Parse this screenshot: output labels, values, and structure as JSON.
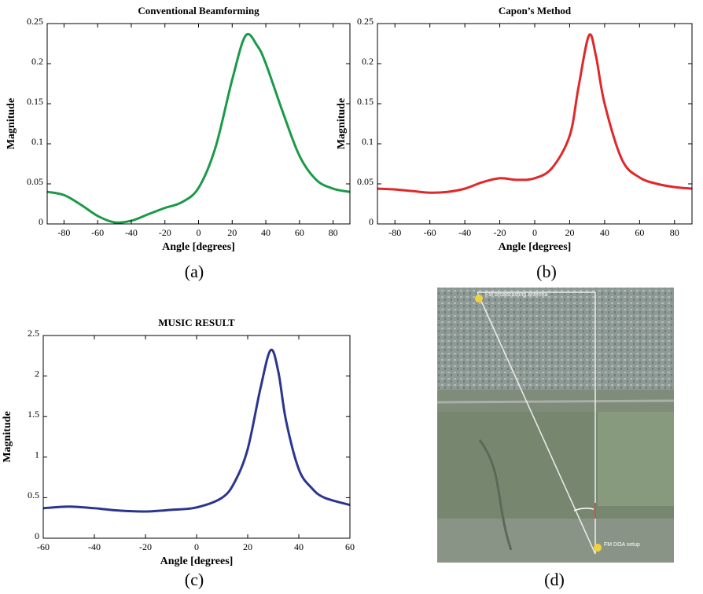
{
  "chart_data": [
    {
      "type": "line",
      "title": "Conventional Beamforming",
      "xlabel": "Angle [degrees]",
      "ylabel": "Magnitude",
      "x": [
        -90,
        -80,
        -70,
        -60,
        -50,
        -40,
        -30,
        -20,
        -10,
        0,
        10,
        20,
        28,
        35,
        40,
        50,
        60,
        70,
        80,
        90
      ],
      "series": [
        {
          "name": "Conventional Beamforming",
          "color": "#1a9a48",
          "values": [
            0.04,
            0.036,
            0.024,
            0.01,
            0.002,
            0.004,
            0.012,
            0.02,
            0.027,
            0.045,
            0.095,
            0.18,
            0.235,
            0.222,
            0.2,
            0.14,
            0.085,
            0.055,
            0.044,
            0.04
          ]
        }
      ],
      "xlim": [
        -90,
        90
      ],
      "xticks": [
        -80,
        -60,
        -40,
        -20,
        0,
        20,
        40,
        60,
        80
      ],
      "ylim": [
        0,
        0.25
      ],
      "yticks": [
        0,
        0.05,
        0.1,
        0.15,
        0.2,
        0.25
      ]
    },
    {
      "type": "line",
      "title": "Capon’s Method",
      "xlabel": "Angle [degrees]",
      "ylabel": "Magnitude",
      "x": [
        -90,
        -80,
        -70,
        -60,
        -50,
        -40,
        -30,
        -20,
        -10,
        0,
        10,
        20,
        25,
        31,
        35,
        40,
        50,
        60,
        70,
        80,
        90
      ],
      "series": [
        {
          "name": "Capon’s Method",
          "color": "#e0282a",
          "values": [
            0.044,
            0.043,
            0.041,
            0.039,
            0.04,
            0.044,
            0.052,
            0.057,
            0.055,
            0.057,
            0.07,
            0.11,
            0.17,
            0.235,
            0.21,
            0.15,
            0.08,
            0.058,
            0.05,
            0.046,
            0.044
          ]
        }
      ],
      "xlim": [
        -90,
        90
      ],
      "xticks": [
        -80,
        -60,
        -40,
        -20,
        0,
        20,
        40,
        60,
        80
      ],
      "ylim": [
        0,
        0.25
      ],
      "yticks": [
        0,
        0.05,
        0.1,
        0.15,
        0.2,
        0.25
      ]
    },
    {
      "type": "line",
      "title": "MUSIC RESULT",
      "xlabel": "Angle [degrees]",
      "ylabel": "Magnitude",
      "x": [
        -60,
        -50,
        -40,
        -30,
        -20,
        -10,
        0,
        10,
        15,
        20,
        25,
        29,
        32,
        35,
        40,
        45,
        50,
        60
      ],
      "series": [
        {
          "name": "MUSIC RESULT",
          "color": "#2b3590",
          "values": [
            0.37,
            0.39,
            0.37,
            0.34,
            0.33,
            0.35,
            0.38,
            0.5,
            0.7,
            1.1,
            1.85,
            2.32,
            2.05,
            1.45,
            0.85,
            0.62,
            0.5,
            0.41
          ]
        }
      ],
      "xlim": [
        -60,
        60
      ],
      "xticks": [
        -60,
        -40,
        -20,
        0,
        20,
        40,
        60
      ],
      "ylim": [
        0,
        2.5
      ],
      "yticks": [
        0,
        0.5,
        1,
        1.5,
        2,
        2.5
      ]
    }
  ],
  "panel_labels": [
    "(a)",
    "(b)",
    "(c)",
    "(d)"
  ],
  "map": {
    "labels": [
      "FM broadcasting antenna",
      "FM DOA setup"
    ]
  }
}
